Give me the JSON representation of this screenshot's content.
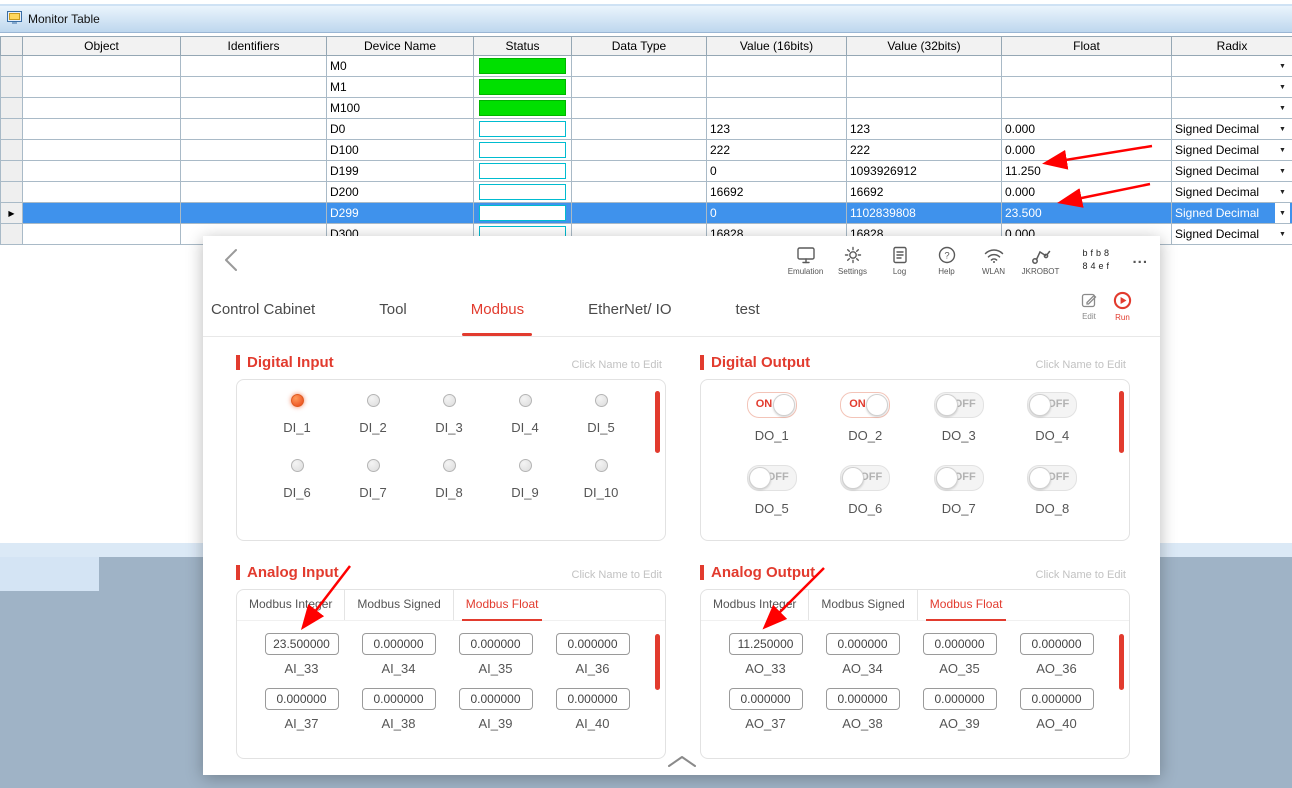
{
  "colors": {
    "accent_red": "#e23b2e",
    "arrow_red": "#ff0000",
    "selection_blue": "#3f92ec",
    "status_green": "#00e000",
    "status_border_cyan": "#00bcd0"
  },
  "monitor_table": {
    "title": "Monitor Table",
    "columns": [
      "Object",
      "Identifiers",
      "Device Name",
      "Status",
      "Data Type",
      "Value (16bits)",
      "Value (32bits)",
      "Float",
      "Radix"
    ],
    "rows": [
      {
        "object": "",
        "identifiers": "",
        "device": "M0",
        "status": "green",
        "data_type": "",
        "value16": "",
        "value32": "",
        "float": "",
        "radix": "",
        "selected": false
      },
      {
        "object": "",
        "identifiers": "",
        "device": "M1",
        "status": "green",
        "data_type": "",
        "value16": "",
        "value32": "",
        "float": "",
        "radix": "",
        "selected": false
      },
      {
        "object": "",
        "identifiers": "",
        "device": "M100",
        "status": "green",
        "data_type": "",
        "value16": "",
        "value32": "",
        "float": "",
        "radix": "",
        "selected": false
      },
      {
        "object": "",
        "identifiers": "",
        "device": "D0",
        "status": "box",
        "data_type": "",
        "value16": "123",
        "value32": "123",
        "float": "0.000",
        "radix": "Signed Decimal",
        "selected": false
      },
      {
        "object": "",
        "identifiers": "",
        "device": "D100",
        "status": "box",
        "data_type": "",
        "value16": "222",
        "value32": "222",
        "float": "0.000",
        "radix": "Signed Decimal",
        "selected": false
      },
      {
        "object": "",
        "identifiers": "",
        "device": "D199",
        "status": "box",
        "data_type": "",
        "value16": "0",
        "value32": "1093926912",
        "float": "11.250",
        "radix": "Signed Decimal",
        "selected": false
      },
      {
        "object": "",
        "identifiers": "",
        "device": "D200",
        "status": "box",
        "data_type": "",
        "value16": "16692",
        "value32": "16692",
        "float": "0.000",
        "radix": "Signed Decimal",
        "selected": false
      },
      {
        "object": "",
        "identifiers": "",
        "device": "D299",
        "status": "box",
        "data_type": "",
        "value16": "0",
        "value32": "1102839808",
        "float": "23.500",
        "radix": "Signed Decimal",
        "selected": true
      },
      {
        "object": "",
        "identifiers": "",
        "device": "D300",
        "status": "box",
        "data_type": "",
        "value16": "16828",
        "value32": "16828",
        "float": "0.000",
        "radix": "Signed Decimal",
        "selected": false
      }
    ]
  },
  "hmi": {
    "toolbar": {
      "icons": [
        {
          "name": "emulation",
          "label": "Emulation"
        },
        {
          "name": "settings",
          "label": "Settings"
        },
        {
          "name": "log",
          "label": "Log"
        },
        {
          "name": "help",
          "label": "Help"
        },
        {
          "name": "wlan",
          "label": "WLAN"
        },
        {
          "name": "jkrobot",
          "label": "JKROBOT"
        }
      ],
      "device_id_line1": "bfb8",
      "device_id_line2": "84ef",
      "more": "..."
    },
    "tabs": {
      "items": [
        "Control Cabinet",
        "Tool",
        "Modbus",
        "EtherNet/ IO",
        "test"
      ],
      "active": "Modbus",
      "edit_label": "Edit",
      "run_label": "Run"
    },
    "sections": {
      "digital_input": {
        "title": "Digital Input",
        "hint": "Click Name to Edit",
        "items": [
          {
            "label": "DI_1",
            "on": true
          },
          {
            "label": "DI_2",
            "on": false
          },
          {
            "label": "DI_3",
            "on": false
          },
          {
            "label": "DI_4",
            "on": false
          },
          {
            "label": "DI_5",
            "on": false
          },
          {
            "label": "DI_6",
            "on": false
          },
          {
            "label": "DI_7",
            "on": false
          },
          {
            "label": "DI_8",
            "on": false
          },
          {
            "label": "DI_9",
            "on": false
          },
          {
            "label": "DI_10",
            "on": false
          }
        ]
      },
      "digital_output": {
        "title": "Digital Output",
        "hint": "Click Name to Edit",
        "items": [
          {
            "label": "DO_1",
            "state": "ON"
          },
          {
            "label": "DO_2",
            "state": "ON"
          },
          {
            "label": "DO_3",
            "state": "OFF"
          },
          {
            "label": "DO_4",
            "state": "OFF"
          },
          {
            "label": "DO_5",
            "state": "OFF"
          },
          {
            "label": "DO_6",
            "state": "OFF"
          },
          {
            "label": "DO_7",
            "state": "OFF"
          },
          {
            "label": "DO_8",
            "state": "OFF"
          }
        ]
      },
      "analog_input": {
        "title": "Analog Input",
        "hint": "Click Name to Edit",
        "tabs": [
          "Modbus Integer",
          "Modbus Signed",
          "Modbus Float"
        ],
        "active_tab": "Modbus Float",
        "items": [
          {
            "label": "AI_33",
            "value": "23.500000"
          },
          {
            "label": "AI_34",
            "value": "0.000000"
          },
          {
            "label": "AI_35",
            "value": "0.000000"
          },
          {
            "label": "AI_36",
            "value": "0.000000"
          },
          {
            "label": "AI_37",
            "value": "0.000000"
          },
          {
            "label": "AI_38",
            "value": "0.000000"
          },
          {
            "label": "AI_39",
            "value": "0.000000"
          },
          {
            "label": "AI_40",
            "value": "0.000000"
          }
        ]
      },
      "analog_output": {
        "title": "Analog Output",
        "hint": "Click Name to Edit",
        "tabs": [
          "Modbus Integer",
          "Modbus Signed",
          "Modbus Float"
        ],
        "active_tab": "Modbus Float",
        "items": [
          {
            "label": "AO_33",
            "value": "11.250000"
          },
          {
            "label": "AO_34",
            "value": "0.000000"
          },
          {
            "label": "AO_35",
            "value": "0.000000"
          },
          {
            "label": "AO_36",
            "value": "0.000000"
          },
          {
            "label": "AO_37",
            "value": "0.000000"
          },
          {
            "label": "AO_38",
            "value": "0.000000"
          },
          {
            "label": "AO_39",
            "value": "0.000000"
          },
          {
            "label": "AO_40",
            "value": "0.000000"
          }
        ]
      }
    }
  }
}
